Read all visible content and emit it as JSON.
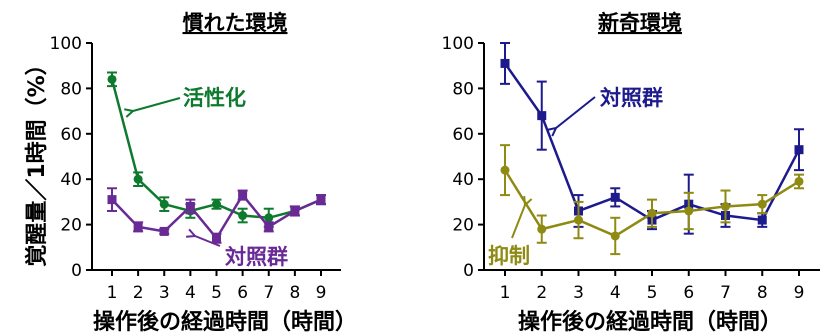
{
  "y_axis_label": "覚醒量／1時間（%）",
  "chart_data": [
    {
      "type": "line",
      "title": "慣れた環境",
      "xlabel": "操作後の経過時間（時間）",
      "ylabel": "覚醒量／1時間（%）",
      "x": [
        1,
        2,
        3,
        4,
        5,
        6,
        7,
        8,
        9
      ],
      "ylim": [
        0,
        100
      ],
      "yticks": [
        0,
        20,
        40,
        60,
        80,
        100
      ],
      "series": [
        {
          "name": "活性化",
          "color": "#0e7a2e",
          "marker": "circle",
          "values": [
            84,
            40,
            29,
            26,
            29,
            24,
            23,
            26,
            31
          ],
          "error": [
            3,
            3,
            3,
            3,
            2,
            3,
            4,
            2,
            2
          ]
        },
        {
          "name": "対照群",
          "color": "#6a2a96",
          "marker": "square",
          "values": [
            31,
            19,
            17,
            28,
            14,
            33,
            19,
            26,
            31
          ],
          "error": [
            5,
            2,
            1,
            3,
            2,
            2,
            2,
            2,
            2
          ]
        }
      ]
    },
    {
      "type": "line",
      "title": "新奇環境",
      "xlabel": "操作後の経過時間（時間）",
      "ylabel": "",
      "x": [
        1,
        2,
        3,
        4,
        5,
        6,
        7,
        8,
        9
      ],
      "ylim": [
        0,
        100
      ],
      "yticks": [
        0,
        20,
        40,
        60,
        80,
        100
      ],
      "series": [
        {
          "name": "対照群",
          "color": "#1c1a8c",
          "marker": "square",
          "values": [
            91,
            68,
            26,
            32,
            22,
            29,
            24,
            22,
            53
          ],
          "error": [
            9,
            15,
            7,
            4,
            4,
            13,
            5,
            3,
            9
          ]
        },
        {
          "name": "抑制",
          "color": "#8f8a12",
          "marker": "circle",
          "values": [
            44,
            18,
            22,
            15,
            25,
            26,
            28,
            29,
            39
          ],
          "error": [
            11,
            6,
            8,
            8,
            6,
            8,
            7,
            4,
            3
          ]
        }
      ]
    }
  ]
}
